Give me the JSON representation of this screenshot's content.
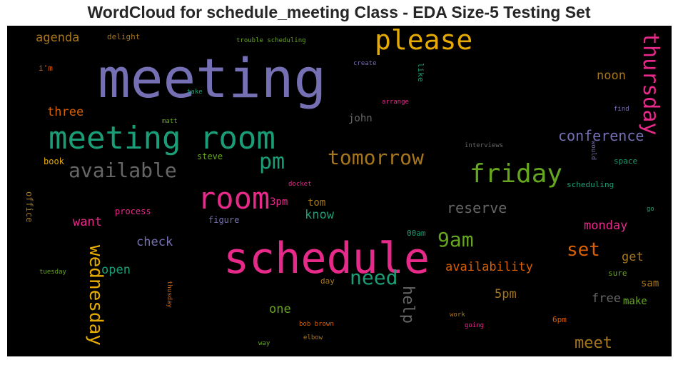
{
  "title": "WordCloud for schedule_meeting Class - EDA Size-5 Testing Set",
  "words": [
    {
      "text": "meeting",
      "color": "#7570b3"
    },
    {
      "text": "schedule",
      "color": "#e7298a"
    },
    {
      "text": "meeting room",
      "color": "#1b9e77"
    },
    {
      "text": "room",
      "color": "#e7298a"
    },
    {
      "text": "please",
      "color": "#e6ab02"
    },
    {
      "text": "friday",
      "color": "#66a61e"
    },
    {
      "text": "thursday",
      "color": "#e7298a"
    },
    {
      "text": "tomorrow",
      "color": "#a6761d"
    },
    {
      "text": "available",
      "color": "#666666"
    },
    {
      "text": "pm",
      "color": "#1b9e77"
    },
    {
      "text": "wednesday",
      "color": "#e6ab02"
    },
    {
      "text": "need",
      "color": "#1b9e77"
    },
    {
      "text": "9am",
      "color": "#66a61e"
    },
    {
      "text": "set",
      "color": "#d95f02"
    },
    {
      "text": "conference",
      "color": "#7570b3"
    },
    {
      "text": "reserve",
      "color": "#666666"
    },
    {
      "text": "help",
      "color": "#666666"
    },
    {
      "text": "meet",
      "color": "#a6761d"
    },
    {
      "text": "agenda",
      "color": "#a6761d"
    },
    {
      "text": "three",
      "color": "#d95f02"
    },
    {
      "text": "noon",
      "color": "#a6761d"
    },
    {
      "text": "check",
      "color": "#7570b3"
    },
    {
      "text": "want",
      "color": "#e7298a"
    },
    {
      "text": "open",
      "color": "#1b9e77"
    },
    {
      "text": "know",
      "color": "#1b9e77"
    },
    {
      "text": "availability",
      "color": "#d95f02"
    },
    {
      "text": "5pm",
      "color": "#a6761d"
    },
    {
      "text": "free",
      "color": "#666666"
    },
    {
      "text": "monday",
      "color": "#e7298a"
    },
    {
      "text": "get",
      "color": "#a6761d"
    },
    {
      "text": "one",
      "color": "#66a61e"
    },
    {
      "text": "john",
      "color": "#666666"
    },
    {
      "text": "tom",
      "color": "#a6761d"
    },
    {
      "text": "3pm",
      "color": "#e7298a"
    },
    {
      "text": "sam",
      "color": "#a6761d"
    },
    {
      "text": "make",
      "color": "#66a61e"
    },
    {
      "text": "office",
      "color": "#a6761d"
    },
    {
      "text": "process",
      "color": "#e7298a"
    },
    {
      "text": "figure",
      "color": "#7570b3"
    },
    {
      "text": "steve",
      "color": "#66a61e"
    },
    {
      "text": "book",
      "color": "#e6ab02"
    },
    {
      "text": "delight",
      "color": "#a6761d"
    },
    {
      "text": "i'm",
      "color": "#d95f02"
    },
    {
      "text": "space",
      "color": "#1b9e77"
    },
    {
      "text": "scheduling",
      "color": "#1b9e77"
    },
    {
      "text": "day",
      "color": "#a6761d"
    },
    {
      "text": "00am",
      "color": "#1b9e77"
    },
    {
      "text": "sure",
      "color": "#66a61e"
    },
    {
      "text": "6pm",
      "color": "#d95f02"
    },
    {
      "text": "like",
      "color": "#1b9e77"
    },
    {
      "text": "trouble scheduling",
      "color": "#66a61e"
    },
    {
      "text": "create",
      "color": "#7570b3"
    },
    {
      "text": "take",
      "color": "#1b9e77"
    },
    {
      "text": "matt",
      "color": "#66a61e"
    },
    {
      "text": "arrange",
      "color": "#e7298a"
    },
    {
      "text": "find",
      "color": "#7570b3"
    },
    {
      "text": "interviews",
      "color": "#666666"
    },
    {
      "text": "would",
      "color": "#7570b3"
    },
    {
      "text": "docket",
      "color": "#e7298a"
    },
    {
      "text": "go",
      "color": "#1b9e77"
    },
    {
      "text": "tuesday",
      "color": "#66a61e"
    },
    {
      "text": "thusday",
      "color": "#d95f02"
    },
    {
      "text": "bob brown",
      "color": "#d95f02"
    },
    {
      "text": "elbow",
      "color": "#a6761d"
    },
    {
      "text": "way",
      "color": "#66a61e"
    },
    {
      "text": "work",
      "color": "#a6761d"
    },
    {
      "text": "going",
      "color": "#e7298a"
    }
  ]
}
